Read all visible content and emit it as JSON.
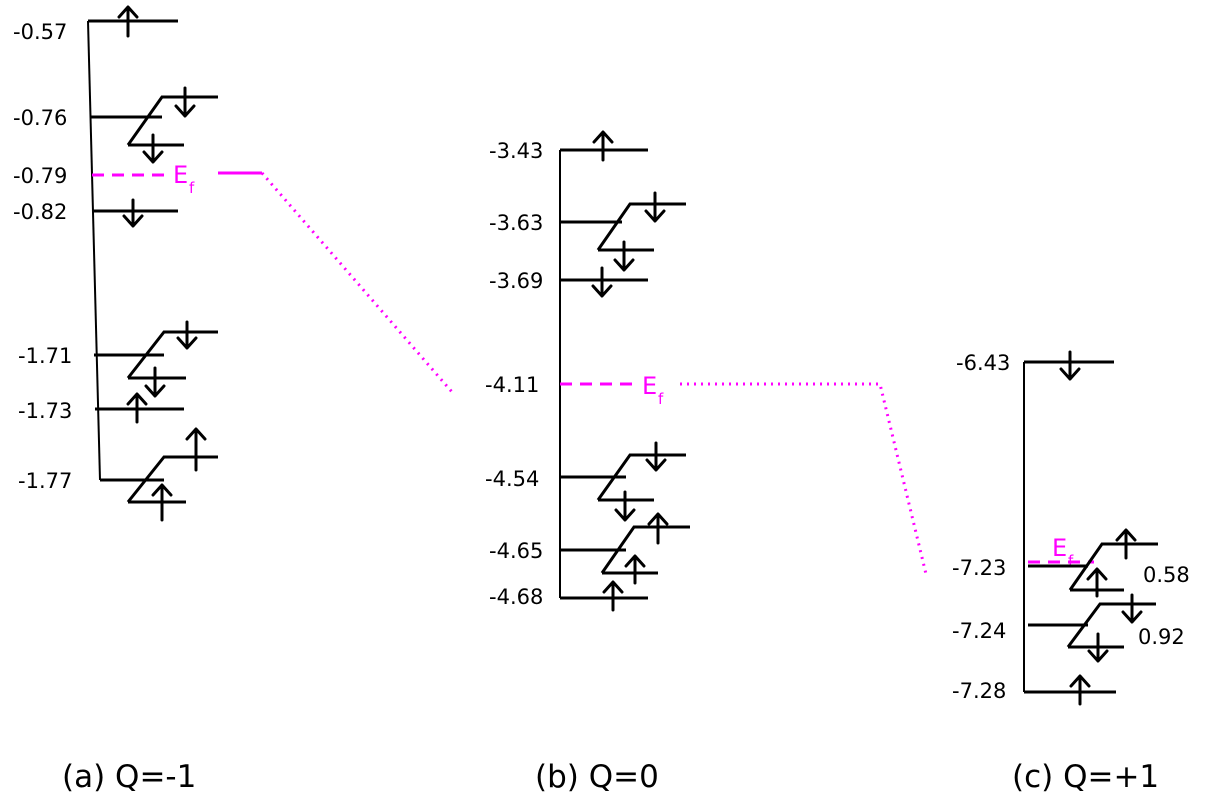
{
  "panels": {
    "a": {
      "caption": "(a) Q=-1",
      "levels": [
        "-0.57",
        "-0.76",
        "-0.79",
        "-0.82",
        "-1.71",
        "-1.73",
        "-1.77"
      ],
      "fermi_label": "E",
      "fermi_sub": "f"
    },
    "b": {
      "caption": "(b) Q=0",
      "levels": [
        "-3.43",
        "-3.63",
        "-3.69",
        "-4.11",
        "-4.54",
        "-4.65",
        "-4.68"
      ],
      "fermi_label": "E",
      "fermi_sub": "f"
    },
    "c": {
      "caption": "(c) Q=+1",
      "levels": [
        "-6.43",
        "-7.23",
        "-7.24",
        "-7.28"
      ],
      "fermi_label": "E",
      "fermi_sub": "f",
      "annotations": [
        "0.58",
        "0.92"
      ]
    }
  },
  "colors": {
    "line": "#000000",
    "fermi": "#ff00ff"
  }
}
